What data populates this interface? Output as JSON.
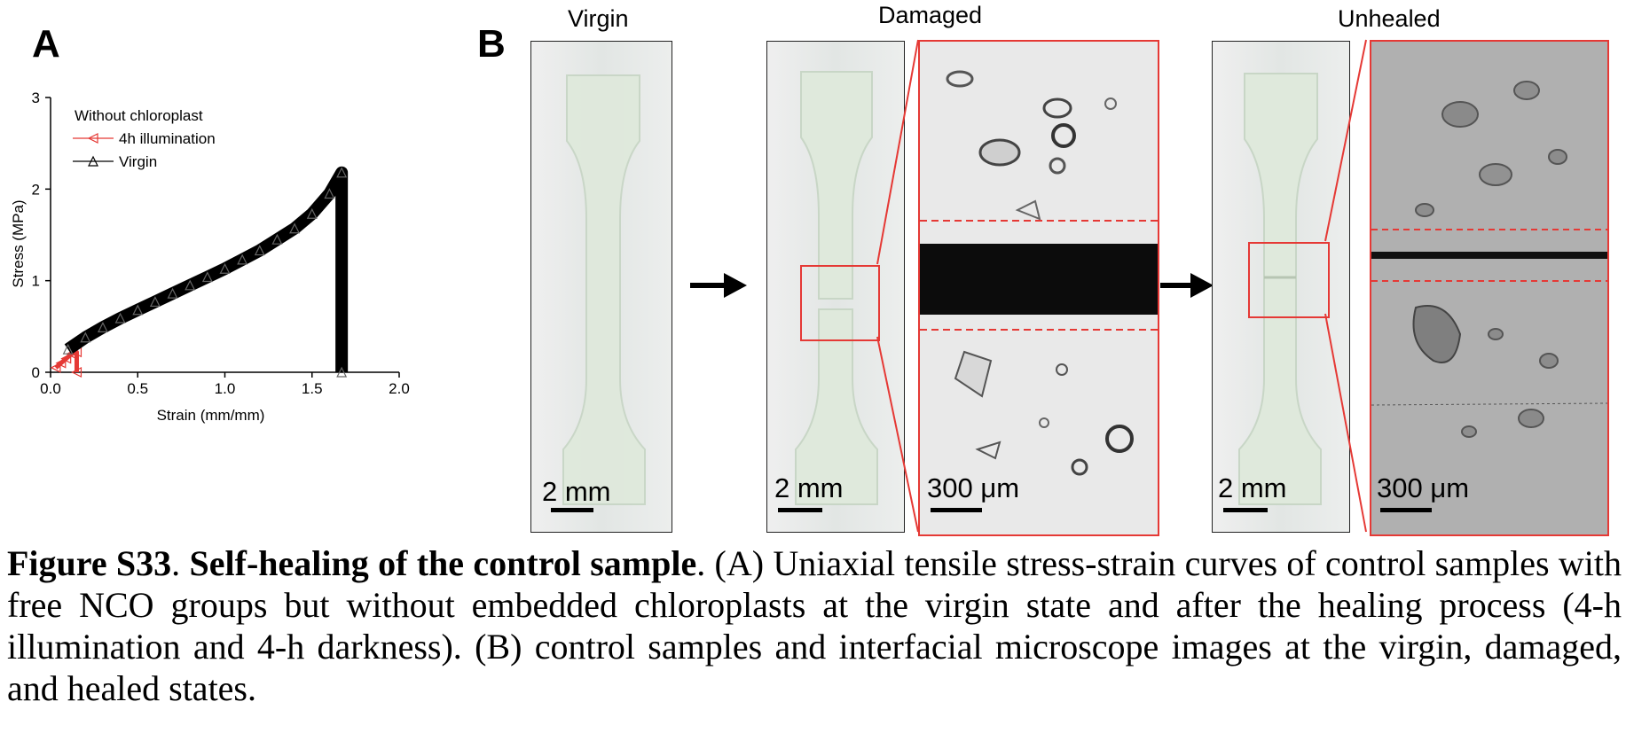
{
  "panels": {
    "a_label": "A",
    "b_label": "B"
  },
  "chart_data": {
    "type": "scatter",
    "xlabel": "Strain (mm/mm)",
    "ylabel": "Stress (MPa)",
    "xlim": [
      0.0,
      2.0
    ],
    "ylim": [
      0,
      3
    ],
    "x_ticks": [
      "0.0",
      "0.5",
      "1.0",
      "1.5",
      "2.0"
    ],
    "y_ticks": [
      "0",
      "1",
      "2",
      "3"
    ],
    "legend_title": "Without chloroplast",
    "legend_position": "top-left",
    "series": [
      {
        "name": "4h illumination",
        "color": "#e53935",
        "marker": "left-triangle",
        "x": [
          0.03,
          0.06,
          0.09,
          0.12,
          0.15,
          0.15
        ],
        "y": [
          0.05,
          0.1,
          0.15,
          0.2,
          0.22,
          0.0
        ]
      },
      {
        "name": "Virgin",
        "color": "#000000",
        "marker": "triangle",
        "x": [
          0.1,
          0.2,
          0.3,
          0.4,
          0.5,
          0.6,
          0.7,
          0.8,
          0.9,
          1.0,
          1.1,
          1.2,
          1.3,
          1.4,
          1.5,
          1.6,
          1.67,
          1.67
        ],
        "y": [
          0.25,
          0.38,
          0.49,
          0.59,
          0.68,
          0.77,
          0.86,
          0.95,
          1.04,
          1.13,
          1.23,
          1.33,
          1.45,
          1.57,
          1.73,
          1.95,
          2.18,
          0.0
        ]
      }
    ]
  },
  "panel_b": {
    "titles": {
      "virgin": "Virgin",
      "damaged": "Damaged",
      "unhealed": "Unhealed"
    },
    "scale_2mm": "2 mm",
    "scale_300um": "300 μm",
    "colors": {
      "frame": "#e53935",
      "arrow": "#000000"
    }
  },
  "caption": {
    "label": "Figure S33",
    "sep": ". ",
    "title": "Self-healing of the control sample",
    "body": ". (A) Uniaxial tensile stress-strain curves of control samples with free NCO groups but without embedded chloroplasts at the virgin state and after the healing process (4-h illumination and 4-h darkness). (B) control samples and interfacial microscope images at the virgin, damaged, and healed states."
  }
}
